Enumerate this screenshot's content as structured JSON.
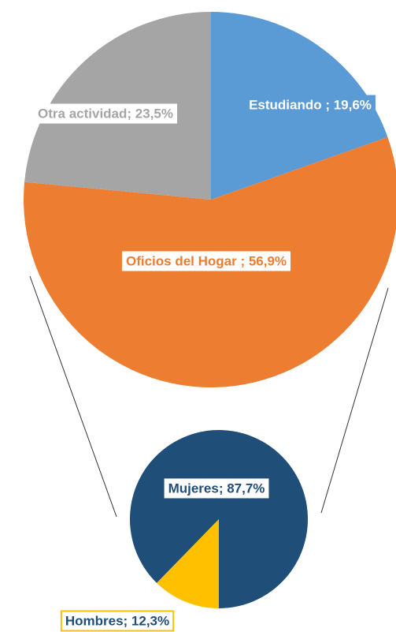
{
  "chart_data": [
    {
      "type": "pie",
      "value_labels": [
        "Estudiando ; 19,6%",
        "Oficios del Hogar ; 56,9%",
        "Otra actividad; 23,5%"
      ],
      "values": [
        19.6,
        56.9,
        23.5
      ],
      "colors": [
        "#5b9bd5",
        "#ed7d31",
        "#a5a5a5"
      ]
    },
    {
      "type": "pie",
      "value_labels": [
        "Mujeres; 87,7%",
        "Hombres; 12,3%"
      ],
      "values": [
        87.7,
        12.3
      ],
      "colors": [
        "#1f4e79",
        "#ffc000"
      ]
    }
  ]
}
